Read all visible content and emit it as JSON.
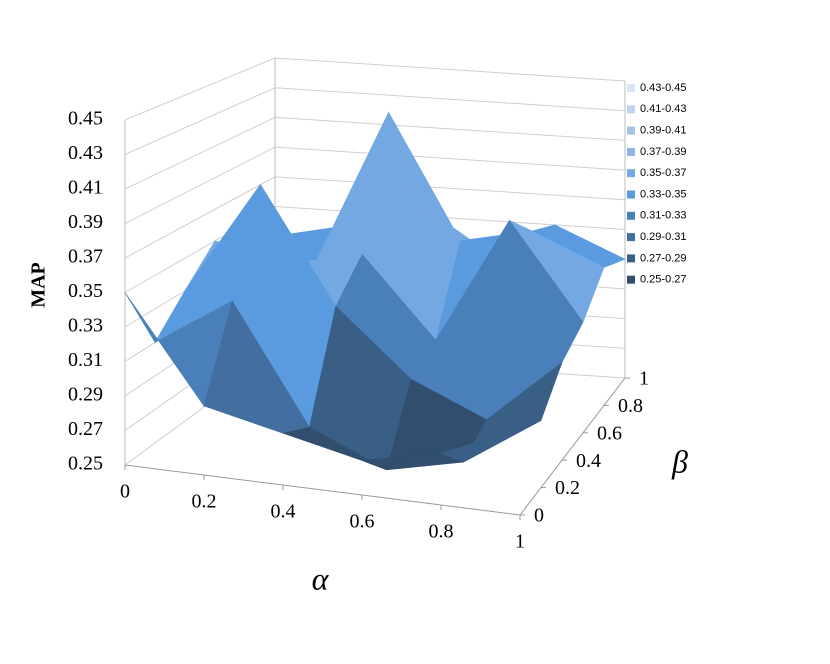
{
  "chart_data": {
    "type": "surface",
    "x_label": "α",
    "y_label": "β",
    "z_label": "MAP",
    "x": [
      0,
      0.2,
      0.4,
      0.6,
      0.8,
      1
    ],
    "y": [
      0,
      0.2,
      0.4,
      0.6,
      0.8,
      1
    ],
    "z": [
      [
        0.35,
        0.29,
        0.28,
        0.27,
        0.28,
        0.3
      ],
      [
        0.31,
        0.34,
        0.27,
        0.25,
        0.26,
        0.29
      ],
      [
        0.33,
        0.4,
        0.33,
        0.29,
        0.27,
        0.31
      ],
      [
        0.35,
        0.34,
        0.35,
        0.3,
        0.38,
        0.32
      ],
      [
        0.32,
        0.33,
        0.43,
        0.35,
        0.36,
        0.34
      ],
      [
        0.33,
        0.34,
        0.36,
        0.33,
        0.35,
        0.33
      ]
    ],
    "xlim": [
      0,
      1
    ],
    "xticks": [
      0,
      0.2,
      0.4,
      0.6,
      0.8,
      1
    ],
    "ylim": [
      0,
      1
    ],
    "yticks": [
      0,
      0.2,
      0.4,
      0.6,
      0.8,
      1
    ],
    "zlim": [
      0.25,
      0.45
    ],
    "zticks": [
      0.25,
      0.27,
      0.29,
      0.31,
      0.33,
      0.35,
      0.37,
      0.39,
      0.41,
      0.43,
      0.45
    ],
    "legend": [
      {
        "name": "0.43-0.45",
        "color": "#d9e6f6"
      },
      {
        "name": "0.41-0.43",
        "color": "#bdd3ee"
      },
      {
        "name": "0.39-0.41",
        "color": "#a4c3e8"
      },
      {
        "name": "0.37-0.39",
        "color": "#8db5e4"
      },
      {
        "name": "0.35-0.37",
        "color": "#73a8e2"
      },
      {
        "name": "0.33-0.35",
        "color": "#5a9ade"
      },
      {
        "name": "0.31-0.33",
        "color": "#4a80ba"
      },
      {
        "name": "0.29-0.31",
        "color": "#426f9f"
      },
      {
        "name": "0.27-0.29",
        "color": "#3a5f86"
      },
      {
        "name": "0.25-0.27",
        "color": "#324e6e"
      }
    ]
  }
}
